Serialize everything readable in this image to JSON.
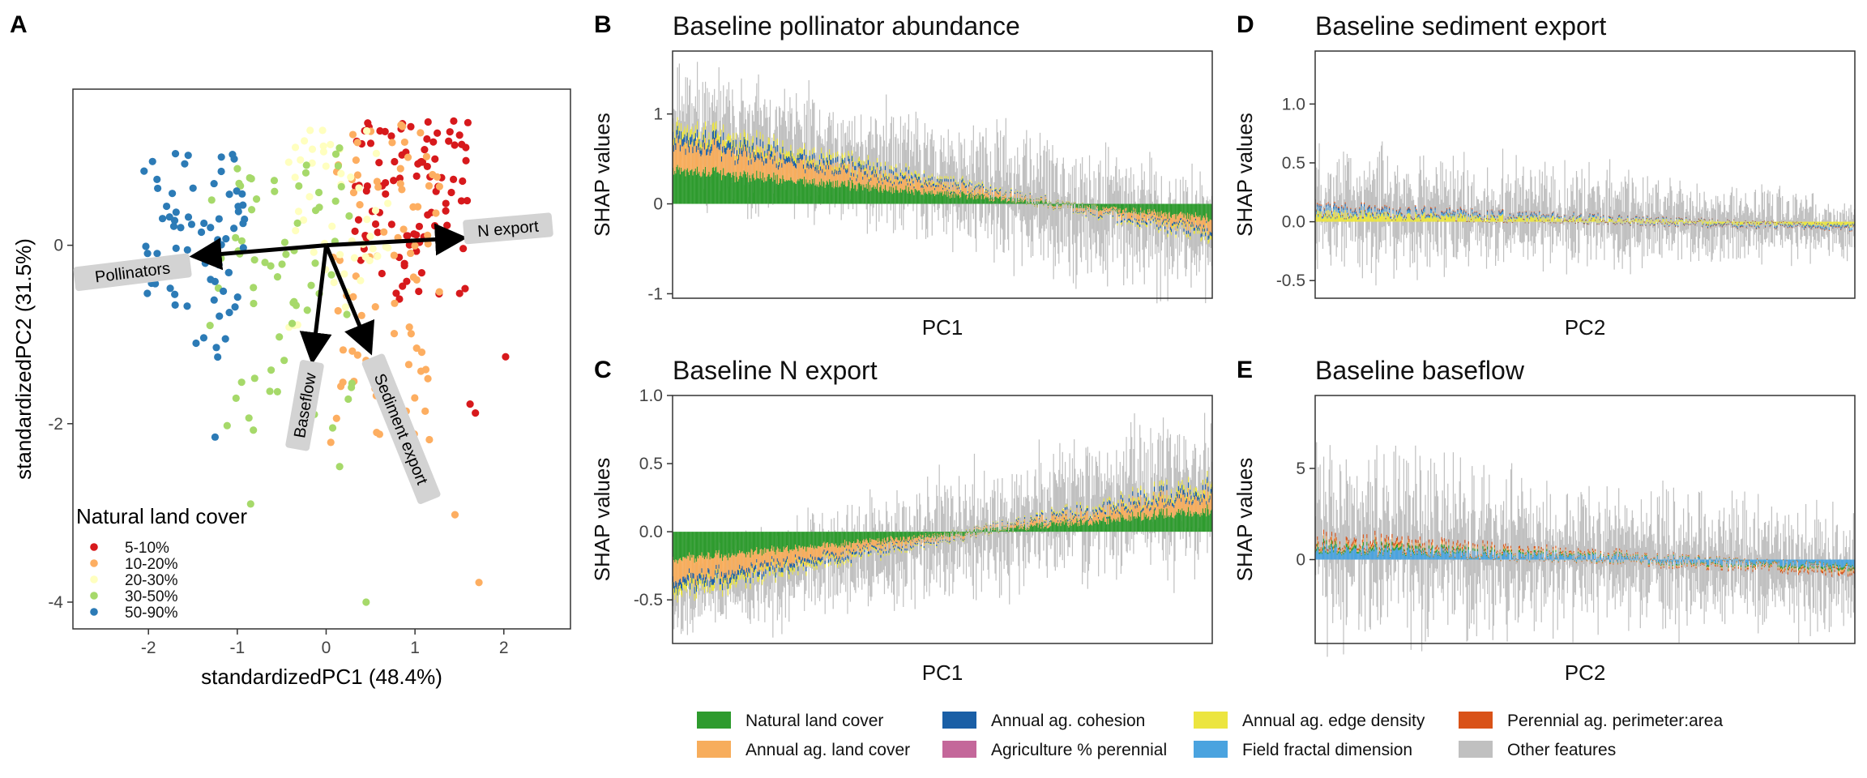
{
  "colors": {
    "natural": "#2e9b2e",
    "annual_land": "#f7ad5c",
    "cohesion": "#1a5fa6",
    "perennial_pct": "#c4679a",
    "edge_density": "#ece53f",
    "fractal": "#4aa3df",
    "perimeter_area": "#d95218",
    "other": "#c0c0c0",
    "cover_5_10": "#d7191c",
    "cover_10_20": "#fdae61",
    "cover_20_30": "#ffffbf",
    "cover_30_50": "#a6d96a",
    "cover_50_90": "#2c7bb6"
  },
  "chart_data": [
    {
      "panel": "A",
      "type": "scatter",
      "title": "",
      "xlabel": "standardizedPC1 (48.4%)",
      "ylabel": "standardizedPC2 (31.5%)",
      "xlim": [
        -2.85,
        2.75
      ],
      "ylim": [
        -4.3,
        1.75
      ],
      "xticks": [
        "-2",
        "-1",
        "0",
        "1",
        "2"
      ],
      "yticks": [
        "-4",
        "-2",
        "0"
      ],
      "grid": false,
      "legend_title": "Natural land cover",
      "legend_position": "bottom-left",
      "groups": [
        {
          "name": "5-10%",
          "color": "#d7191c",
          "count": 95,
          "x_range": [
            0.3,
            1.6
          ],
          "y_range": [
            -0.7,
            1.4
          ]
        },
        {
          "name": "10-20%",
          "color": "#fdae61",
          "count": 80,
          "x_range": [
            0.0,
            1.3
          ],
          "y_range": [
            -2.6,
            1.35
          ]
        },
        {
          "name": "20-30%",
          "color": "#ffffbf",
          "count": 50,
          "x_range": [
            -0.5,
            0.7
          ],
          "y_range": [
            -1.2,
            1.3
          ]
        },
        {
          "name": "30-50%",
          "color": "#a6d96a",
          "count": 70,
          "x_range": [
            -1.4,
            0.3
          ],
          "y_range": [
            -2.6,
            1.1
          ]
        },
        {
          "name": "50-90%",
          "color": "#2c7bb6",
          "count": 75,
          "x_range": [
            -2.1,
            -0.9
          ],
          "y_range": [
            -1.3,
            1.1
          ]
        }
      ],
      "extra_points": [
        {
          "x": 2.02,
          "y": -1.25,
          "group": "5-10%"
        },
        {
          "x": 1.62,
          "y": -1.78,
          "group": "5-10%"
        },
        {
          "x": 1.68,
          "y": -1.88,
          "group": "5-10%"
        },
        {
          "x": 1.72,
          "y": -3.78,
          "group": "10-20%"
        },
        {
          "x": 1.45,
          "y": -3.02,
          "group": "10-20%"
        },
        {
          "x": 0.45,
          "y": -4.0,
          "group": "30-50%"
        },
        {
          "x": -1.25,
          "y": -2.15,
          "group": "50-90%"
        },
        {
          "x": -0.85,
          "y": -2.9,
          "group": "30-50%"
        }
      ],
      "arrows": [
        {
          "label": "Pollinators",
          "x": -1.45,
          "y": -0.12
        },
        {
          "label": "N export",
          "x": 1.5,
          "y": 0.08
        },
        {
          "label": "Baseflow",
          "x": -0.15,
          "y": -1.25
        },
        {
          "label": "Sediment export",
          "x": 0.48,
          "y": -1.15
        }
      ]
    },
    {
      "panel": "B",
      "type": "bar",
      "title": "Baseline pollinator abundance",
      "xlabel": "PC1",
      "ylabel": "SHAP values",
      "ylim": [
        -1.05,
        1.7
      ],
      "yticks": [
        "-1",
        "0",
        "1"
      ],
      "n_bars": 600,
      "trend": {
        "start": 0.85,
        "end": -0.35
      },
      "grey_spread": [
        0.55,
        0.55
      ],
      "components": [
        "natural",
        "annual_land",
        "cohesion",
        "edge_density",
        "other"
      ]
    },
    {
      "panel": "C",
      "type": "bar",
      "title": "Baseline N export",
      "xlabel": "PC1",
      "ylabel": "SHAP values",
      "ylim": [
        -0.82,
        1.0
      ],
      "yticks": [
        "-0.5",
        "0.0",
        "0.5",
        "1.0"
      ],
      "n_bars": 600,
      "trend": {
        "start": -0.45,
        "end": 0.35
      },
      "grey_spread": [
        0.25,
        0.45
      ],
      "components": [
        "natural",
        "annual_land",
        "cohesion",
        "edge_density",
        "other"
      ]
    },
    {
      "panel": "D",
      "type": "bar",
      "title": "Baseline sediment export",
      "xlabel": "PC2",
      "ylabel": "SHAP values",
      "ylim": [
        -0.65,
        1.45
      ],
      "yticks": [
        "-0.5",
        "0.0",
        "0.5",
        "1.0"
      ],
      "n_bars": 600,
      "trend": {
        "start": 0.1,
        "end": -0.05
      },
      "grey_spread": [
        0.45,
        0.2
      ],
      "components": [
        "edge_density",
        "fractal",
        "cohesion",
        "perimeter_area",
        "other"
      ]
    },
    {
      "panel": "E",
      "type": "bar",
      "title": "Baseline baseflow",
      "xlabel": "PC2",
      "ylabel": "SHAP values",
      "ylim": [
        -4.6,
        9.0
      ],
      "yticks": [
        "0",
        "5"
      ],
      "n_bars": 600,
      "trend": {
        "start": 1.0,
        "end": -0.6
      },
      "grey_spread": [
        4.0,
        2.5
      ],
      "components": [
        "fractal",
        "natural",
        "annual_land",
        "perimeter_area",
        "other"
      ]
    }
  ],
  "panel_letters": {
    "a": "A",
    "b": "B",
    "c": "C",
    "d": "D",
    "e": "E"
  },
  "legend": [
    {
      "label": "Natural land cover",
      "key": "natural"
    },
    {
      "label": "Annual ag. land cover",
      "key": "annual_land"
    },
    {
      "label": "Annual ag. cohesion",
      "key": "cohesion"
    },
    {
      "label": "Agriculture % perennial",
      "key": "perennial_pct"
    },
    {
      "label": "Annual ag. edge density",
      "key": "edge_density"
    },
    {
      "label": "Field fractal dimension",
      "key": "fractal"
    },
    {
      "label": "Perennial ag. perimeter:area",
      "key": "perimeter_area"
    },
    {
      "label": "Other features",
      "key": "other"
    }
  ]
}
